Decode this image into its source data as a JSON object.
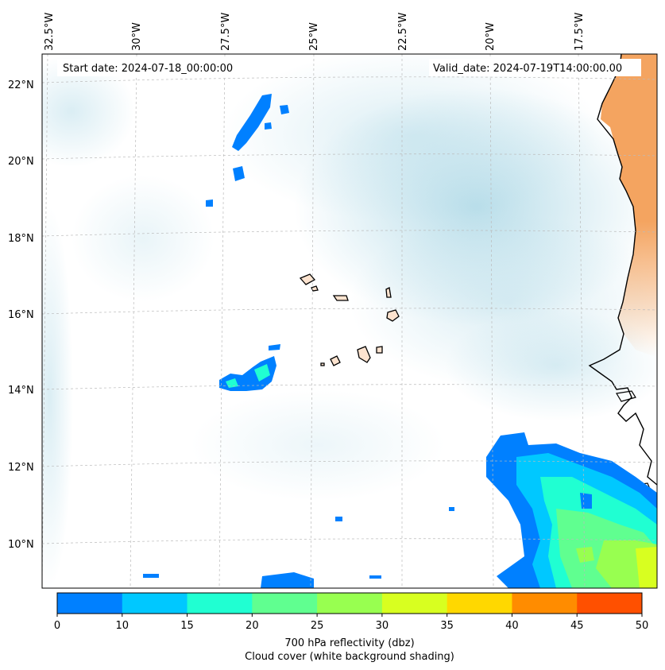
{
  "map": {
    "start_date_label": "Start date: 2024-07-18_00:00:00",
    "valid_date_label": "Valid_date: 2024-07-19T14:00:00.00",
    "lon_labels": [
      "32.5°W",
      "30°W",
      "27.5°W",
      "25°W",
      "22.5°W",
      "20°W",
      "17.5°W"
    ],
    "lat_labels": [
      "22°N",
      "20°N",
      "18°N",
      "16°N",
      "14°N",
      "12°N",
      "10°N"
    ],
    "colors": {
      "land": "#f4a460",
      "cloud": "#add8e6",
      "coast": "#000000",
      "gridline": "#bbbbbb"
    }
  },
  "colorbar": {
    "ticks": [
      "0",
      "10",
      "15",
      "20",
      "25",
      "30",
      "35",
      "40",
      "45",
      "50"
    ],
    "colors": [
      "#0080ff",
      "#00c8ff",
      "#20ffd2",
      "#60ff90",
      "#98ff50",
      "#d8ff20",
      "#ffd800",
      "#ff8c00",
      "#ff5000"
    ],
    "caption_line1": "700 hPa reflectivity (dbz)",
    "caption_line2": "Cloud cover (white background shading)"
  }
}
